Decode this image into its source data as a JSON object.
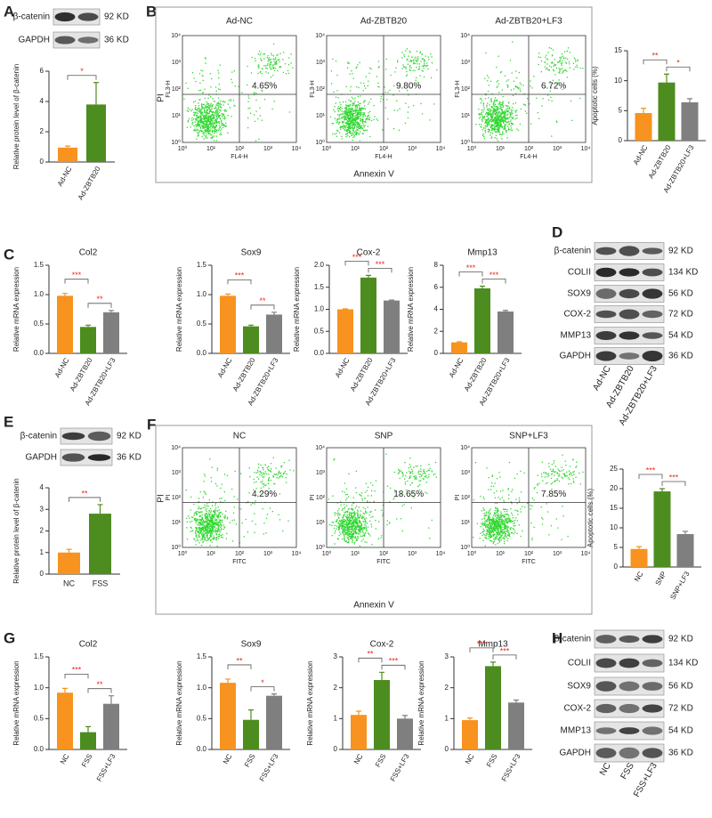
{
  "panel_labels": [
    "A",
    "B",
    "C",
    "D",
    "E",
    "F",
    "G",
    "H"
  ],
  "chart_data": [
    {
      "type": "bar",
      "ylabel": "Relative protein level of β-catenin",
      "categories": [
        "Ad-NC",
        "Ad-ZBTB20"
      ],
      "values": [
        0.95,
        3.8
      ],
      "errors": [
        0.1,
        1.45
      ],
      "colors": [
        "#f7931e",
        "#4d8c1e"
      ],
      "ylim": [
        0,
        6
      ],
      "yticks": [
        0,
        2,
        4,
        6
      ],
      "significance": [
        "*"
      ]
    },
    {
      "type": "bar",
      "ylabel": "Apoptotic cells (%)",
      "categories": [
        "Ad-NC",
        "Ad-ZBTB20",
        "Ad-ZBTB20+LF3"
      ],
      "values": [
        4.6,
        9.7,
        6.4
      ],
      "errors": [
        0.8,
        1.4,
        0.6
      ],
      "colors": [
        "#f7931e",
        "#4d8c1e",
        "#7f7f7f"
      ],
      "ylim": [
        0,
        15
      ],
      "yticks": [
        0,
        5,
        10,
        15
      ],
      "significance": [
        "**",
        "*"
      ]
    },
    {
      "type": "bar",
      "title": "Col2",
      "ylabel": "Relative mRNA expression",
      "categories": [
        "Ad-NC",
        "Ad-ZBTB20",
        "Ad-ZBTB20+LF3"
      ],
      "values": [
        0.98,
        0.45,
        0.7
      ],
      "errors": [
        0.04,
        0.03,
        0.03
      ],
      "colors": [
        "#f7931e",
        "#4d8c1e",
        "#7f7f7f"
      ],
      "ylim": [
        0,
        1.5
      ],
      "yticks": [
        {
          "value": 0,
          "label": "0.0"
        },
        0.5,
        {
          "value": 1,
          "label": "1.0"
        },
        1.5
      ],
      "significance": [
        "***",
        "**"
      ]
    },
    {
      "type": "bar",
      "title": "Sox9",
      "ylabel": "Relative mRNA expression",
      "categories": [
        "Ad-NC",
        "Ad-ZBTB20",
        "Ad-ZBTB20+LF3"
      ],
      "values": [
        0.98,
        0.46,
        0.66
      ],
      "errors": [
        0.03,
        0.02,
        0.04
      ],
      "colors": [
        "#f7931e",
        "#4d8c1e",
        "#7f7f7f"
      ],
      "ylim": [
        0,
        1.5
      ],
      "yticks": [
        {
          "value": 0,
          "label": "0.0"
        },
        0.5,
        {
          "value": 1,
          "label": "1.0"
        },
        1.5
      ],
      "significance": [
        "***",
        "**"
      ]
    },
    {
      "type": "bar",
      "title": "Cox-2",
      "ylabel": "Relative mRNA expression",
      "categories": [
        "Ad-NC",
        "Ad-ZBTB20",
        "Ad-ZBTB20+LF3"
      ],
      "values": [
        1.0,
        1.72,
        1.2
      ],
      "errors": [
        0.01,
        0.05,
        0.01
      ],
      "colors": [
        "#f7931e",
        "#4d8c1e",
        "#7f7f7f"
      ],
      "ylim": [
        0,
        2
      ],
      "yticks": [
        {
          "value": 0,
          "label": "0.0"
        },
        0.5,
        {
          "value": 1,
          "label": "1.0"
        },
        1.5,
        {
          "value": 2,
          "label": "2.0"
        }
      ],
      "significance": [
        "***",
        "***"
      ]
    },
    {
      "type": "bar",
      "title": "Mmp13",
      "ylabel": "Relative mRNA expression",
      "categories": [
        "Ad-NC",
        "Ad-ZBTB20",
        "Ad-ZBTB20+LF3"
      ],
      "values": [
        1.0,
        5.9,
        3.8
      ],
      "errors": [
        0.05,
        0.2,
        0.1
      ],
      "colors": [
        "#f7931e",
        "#4d8c1e",
        "#7f7f7f"
      ],
      "ylim": [
        0,
        8
      ],
      "yticks": [
        0,
        2,
        4,
        6,
        8
      ],
      "significance": [
        "***",
        "***"
      ]
    },
    {
      "type": "bar",
      "ylabel": "Relative protein level of β-catenin",
      "categories": [
        "NC",
        "FSS"
      ],
      "values": [
        1.0,
        2.8
      ],
      "errors": [
        0.15,
        0.42
      ],
      "colors": [
        "#f7931e",
        "#4d8c1e"
      ],
      "ylim": [
        0,
        4
      ],
      "yticks": [
        0,
        1,
        2,
        3,
        4
      ],
      "significance": [
        "**"
      ]
    },
    {
      "type": "bar",
      "ylabel": "Apoptotic cells (%)",
      "categories": [
        "NC",
        "SNP",
        "SNP+LF3"
      ],
      "values": [
        4.6,
        19.3,
        8.4
      ],
      "errors": [
        0.6,
        0.7,
        0.7
      ],
      "colors": [
        "#f7931e",
        "#4d8c1e",
        "#7f7f7f"
      ],
      "ylim": [
        0,
        25
      ],
      "yticks": [
        0,
        5,
        10,
        15,
        20,
        25
      ],
      "significance": [
        "***",
        "***"
      ]
    },
    {
      "type": "bar",
      "title": "Col2",
      "ylabel": "Relative mRNA expression",
      "categories": [
        "NC",
        "FSS",
        "FSS+LF3"
      ],
      "values": [
        0.92,
        0.28,
        0.74
      ],
      "errors": [
        0.07,
        0.09,
        0.13
      ],
      "colors": [
        "#f7931e",
        "#4d8c1e",
        "#7f7f7f"
      ],
      "ylim": [
        0,
        1.5
      ],
      "yticks": [
        {
          "value": 0,
          "label": "0.0"
        },
        0.5,
        {
          "value": 1,
          "label": "1.0"
        },
        1.5
      ],
      "significance": [
        "***",
        "**"
      ]
    },
    {
      "type": "bar",
      "title": "Sox9",
      "ylabel": "Relative mRNA expression",
      "categories": [
        "NC",
        "FSS",
        "FSS+LF3"
      ],
      "values": [
        1.08,
        0.48,
        0.87
      ],
      "errors": [
        0.06,
        0.16,
        0.03
      ],
      "colors": [
        "#f7931e",
        "#4d8c1e",
        "#7f7f7f"
      ],
      "ylim": [
        0,
        1.5
      ],
      "yticks": [
        {
          "value": 0,
          "label": "0.0"
        },
        0.5,
        {
          "value": 1,
          "label": "1.0"
        },
        1.5
      ],
      "significance": [
        "**",
        "*"
      ]
    },
    {
      "type": "bar",
      "title": "Cox-2",
      "ylabel": "Relative mRNA expression",
      "categories": [
        "NC",
        "FSS",
        "FSS+LF3"
      ],
      "values": [
        1.12,
        2.25,
        1.0
      ],
      "errors": [
        0.12,
        0.25,
        0.1
      ],
      "colors": [
        "#f7931e",
        "#4d8c1e",
        "#7f7f7f"
      ],
      "ylim": [
        0,
        3
      ],
      "yticks": [
        0,
        1,
        2,
        3
      ],
      "significance": [
        "**",
        "***"
      ]
    },
    {
      "type": "bar",
      "title": "Mmp13",
      "ylabel": "Relative mRNA expression",
      "categories": [
        "NC",
        "FSS",
        "FSS+LF3"
      ],
      "values": [
        0.95,
        2.7,
        1.52
      ],
      "errors": [
        0.07,
        0.13,
        0.08
      ],
      "colors": [
        "#f7931e",
        "#4d8c1e",
        "#7f7f7f"
      ],
      "ylim": [
        0,
        3
      ],
      "yticks": [
        0,
        1,
        2,
        3
      ],
      "significance": [
        "***",
        "***"
      ]
    }
  ],
  "flow_panels": [
    {
      "xlabel": "Annexin V",
      "ylabel": "PI",
      "x_channel": "FL4-H",
      "y_channel": "FL3-H",
      "ticks": [
        "10⁰",
        "10¹",
        "10²",
        "10³",
        "10⁴"
      ],
      "plots": [
        {
          "title": "Ad-NC",
          "percent": "4.65%"
        },
        {
          "title": "Ad-ZBTB20",
          "percent": "9.80%"
        },
        {
          "title": "Ad-ZBTB20+LF3",
          "percent": "6.72%"
        }
      ]
    },
    {
      "xlabel": "Annexin V",
      "ylabel": "PI",
      "x_channel": "FITC",
      "y_channel": "PI",
      "ticks": [
        "10⁰",
        "10¹",
        "10²",
        "10³",
        "10⁴"
      ],
      "plots": [
        {
          "title": "NC",
          "percent": "4.29%"
        },
        {
          "title": "SNP",
          "percent": "18.65%"
        },
        {
          "title": "SNP+LF3",
          "percent": "7.85%"
        }
      ]
    }
  ],
  "blots": [
    {
      "rows": [
        {
          "protein": "β-catenin",
          "size": "92 KD"
        },
        {
          "protein": "GAPDH",
          "size": "36 KD"
        }
      ]
    },
    {
      "rows": [
        {
          "protein": "β-catenin",
          "size": "92 KD"
        },
        {
          "protein": "COLII",
          "size": "134 KD"
        },
        {
          "protein": "SOX9",
          "size": "56 KD"
        },
        {
          "protein": "COX-2",
          "size": "72 KD"
        },
        {
          "protein": "MMP13",
          "size": "54 KD"
        },
        {
          "protein": "GAPDH",
          "size": "36 KD"
        }
      ],
      "lanes": [
        "Ad-NC",
        "Ad-ZBTB20",
        "Ad-ZBTB20+LF3"
      ]
    },
    {
      "rows": [
        {
          "protein": "β-catenin",
          "size": "92 KD"
        },
        {
          "protein": "GAPDH",
          "size": "36 KD"
        }
      ]
    },
    {
      "rows": [
        {
          "protein": "β-catenin",
          "size": "92 KD"
        },
        {
          "protein": "COLII",
          "size": "134 KD"
        },
        {
          "protein": "SOX9",
          "size": "56 KD"
        },
        {
          "protein": "COX-2",
          "size": "72 KD"
        },
        {
          "protein": "MMP13",
          "size": "54 KD"
        },
        {
          "protein": "GAPDH",
          "size": "36 KD"
        }
      ],
      "lanes": [
        "NC",
        "FSS",
        "FSS+LF3"
      ]
    }
  ]
}
